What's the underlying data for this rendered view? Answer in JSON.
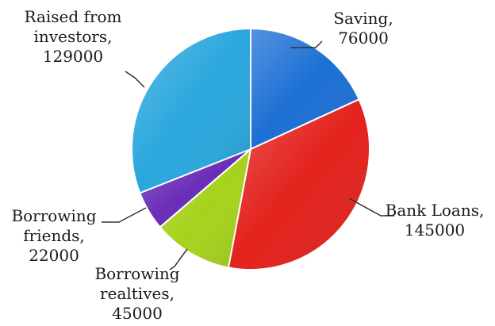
{
  "chart_data": {
    "type": "pie",
    "title": "",
    "slices": [
      {
        "name": "Saving",
        "value": 76000,
        "label_lines": [
          "Saving,",
          "76000"
        ],
        "color": "#1c6fd4"
      },
      {
        "name": "Bank Loans",
        "value": 145000,
        "label_lines": [
          "Bank Loans,",
          "145000"
        ],
        "color": "#e3221d"
      },
      {
        "name": "Borrowing realtives",
        "value": 45000,
        "label_lines": [
          "Borrowing",
          "realtives,",
          "45000"
        ],
        "color": "#a6d21d"
      },
      {
        "name": "Borrowing friends",
        "value": 22000,
        "label_lines": [
          "Borrowing",
          "friends,",
          "22000"
        ],
        "color": "#6a2db8"
      },
      {
        "name": "Raised from investors",
        "value": 129000,
        "label_lines": [
          "Raised from",
          "investors,",
          "129000"
        ],
        "color": "#2aa7dd"
      }
    ],
    "start_angle": "top, clockwise",
    "labels": "outside with leader lines"
  }
}
